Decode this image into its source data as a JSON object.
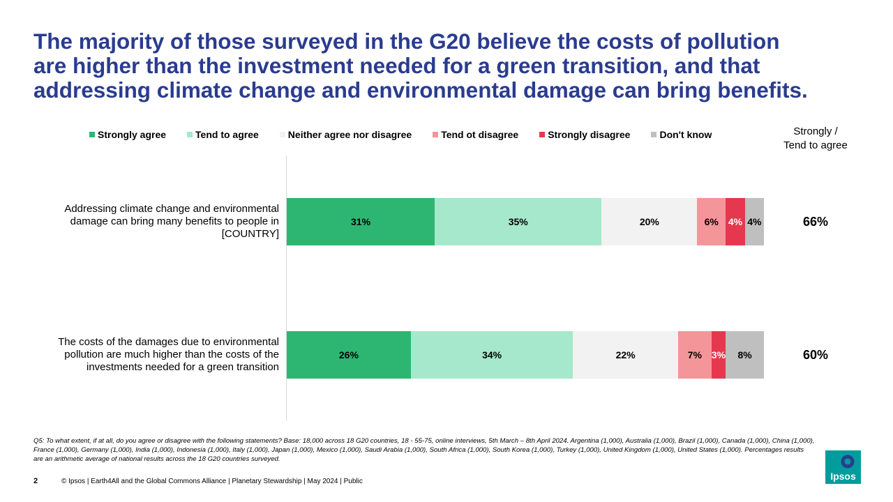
{
  "title_lines": [
    "The majority of those surveyed in the G20 believe the costs of pollution",
    "are higher than the investment needed for a green transition, and that",
    "addressing climate change and environmental damage can bring benefits."
  ],
  "net_header_lines": [
    "Strongly /",
    "Tend to agree"
  ],
  "chart_data": {
    "type": "bar",
    "orientation": "horizontal",
    "stacked": true,
    "value_unit": "%",
    "categories": [
      "Addressing climate change and environmental damage can bring many benefits to people in [COUNTRY]",
      "The costs of the damages due to environmental pollution are much higher than the costs of the investments needed for a green transition"
    ],
    "category_label_lines": [
      [
        "Addressing climate change and environmental",
        "damage can bring many benefits to people in",
        "[COUNTRY]"
      ],
      [
        "The costs of the damages due to environmental",
        "pollution are much higher than the costs of the",
        "investments needed for a green transition"
      ]
    ],
    "series": [
      {
        "name": "Strongly agree",
        "color": "#2db672",
        "label_color": "#000000",
        "values": [
          31,
          26
        ],
        "labels": [
          "31%",
          "26%"
        ]
      },
      {
        "name": "Tend to agree",
        "color": "#a6e8cb",
        "label_color": "#000000",
        "values": [
          35,
          34
        ],
        "labels": [
          "35%",
          "34%"
        ]
      },
      {
        "name": "Neither agree nor disagree",
        "color": "#f2f2f2",
        "label_color": "#000000",
        "values": [
          20,
          22
        ],
        "labels": [
          "20%",
          "22%"
        ]
      },
      {
        "name": "Tend ot disagree",
        "color": "#f4959a",
        "label_color": "#000000",
        "values": [
          6,
          7
        ],
        "labels": [
          "6%",
          "7%"
        ]
      },
      {
        "name": "Strongly disagree",
        "color": "#e5384f",
        "label_color": "#ffffff",
        "values": [
          4,
          3
        ],
        "labels": [
          "4%",
          "3%"
        ]
      },
      {
        "name": "Don't know",
        "color": "#bfbfbf",
        "label_color": "#000000",
        "values": [
          4,
          8
        ],
        "labels": [
          "4%",
          "8%"
        ]
      }
    ],
    "net_agree": [
      "66%",
      "60%"
    ],
    "legend_position": "top",
    "grid": false
  },
  "footnote": "Q5: To what extent, if at all, do you agree or disagree with the following statements? Base: 18,000 across 18 G20 countries, 18 - 55-75, online interviews, 5th March – 8th April 2024. Argentina (1,000), Australia (1,000), Brazil (1,000), Canada (1,000), China (1,000), France (1,000), Germany (1,000), India (1,000), Indonesia (1,000), Italy (1,000), Japan (1,000), Mexico (1,000), Saudi Arabia (1,000), South Africa (1,000), South Korea (1,000), Turkey (1,000), United Kingdom (1,000), United States (1,000). Percentages results are an arithmetic average of national results across the 18 G20 countries surveyed.",
  "page_number": "2",
  "footer": "© Ipsos | Earth4All and the Global Commons Alliance | Planetary Stewardship | May 2024 | Public",
  "logo": {
    "text": "Ipsos",
    "color": "#009d9c",
    "icon": "ipsos-logo"
  }
}
